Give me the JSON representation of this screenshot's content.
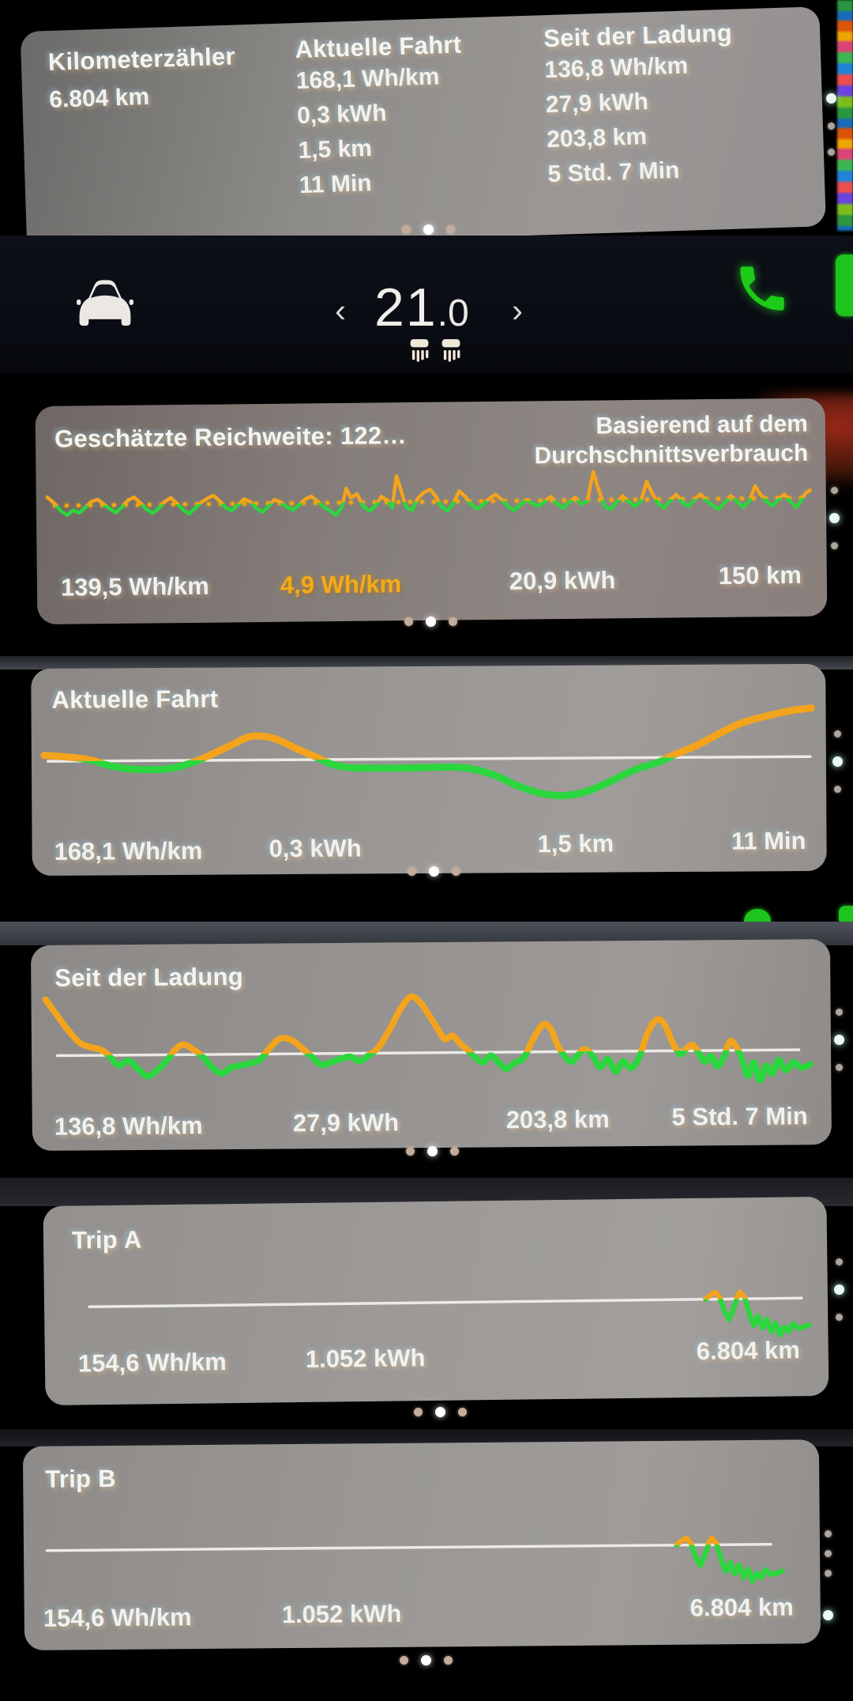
{
  "colors": {
    "orange": "#f3a41c",
    "green": "#2bd63e",
    "white_line": "#eceae6",
    "accent_text_orange": "#f5ab17"
  },
  "icons": {
    "car": "car-front-icon",
    "phone": "phone-icon",
    "seat_left": "seat-heater-left-icon",
    "seat_right": "seat-heater-right-icon",
    "chevron_left": "chevron-left-icon",
    "chevron_right": "chevron-right-icon"
  },
  "odometer_card": {
    "odometer_label": "Kilometerzähler",
    "odometer_value": "6.804 km",
    "current_drive": {
      "title": "Aktuelle Fahrt",
      "rows": [
        "168,1 Wh/km",
        "0,3 kWh",
        "1,5 km",
        "11 Min"
      ]
    },
    "since_charge": {
      "title": "Seit der Ladung",
      "rows": [
        "136,8 Wh/km",
        "27,9 kWh",
        "203,8 km",
        "5 Std. 7 Min"
      ]
    }
  },
  "climate_bar": {
    "chevron_left": "‹",
    "chevron_right": "›",
    "temp_int": "21",
    "temp_dec": ".0"
  },
  "range_card": {
    "title": "Geschätzte Reichweite: 122…",
    "subtitle_line1": "Basierend auf dem",
    "subtitle_line2": "Durchschnittsverbrauch",
    "stats": [
      "139,5 Wh/km",
      "4,9 Wh/km",
      "20,9 kWh",
      "150 km"
    ]
  },
  "current_drive_card": {
    "title": "Aktuelle Fahrt",
    "stats": [
      "168,1 Wh/km",
      "0,3 kWh",
      "1,5 km",
      "11 Min"
    ]
  },
  "since_charge_card": {
    "title": "Seit der Ladung",
    "stats": [
      "136,8 Wh/km",
      "27,9 kWh",
      "203,8 km",
      "5 Std. 7 Min"
    ]
  },
  "trip_a_card": {
    "title": "Trip A",
    "stats": [
      "154,6 Wh/km",
      "1.052 kWh",
      "6.804 km"
    ]
  },
  "trip_b_card": {
    "title": "Trip B",
    "stats": [
      "154,6 Wh/km",
      "1.052 kWh",
      "6.804 km"
    ]
  },
  "chart_data": [
    {
      "id": "range",
      "type": "line",
      "title": "Geschätzte Reichweite Verbrauch",
      "baseline": 70,
      "baseline_style": "none",
      "smooth": false,
      "stroke_width": 4.5,
      "points": [
        [
          0,
          18
        ],
        [
          10,
          4
        ],
        [
          18,
          -12
        ],
        [
          26,
          -20
        ],
        [
          34,
          -10
        ],
        [
          42,
          -16
        ],
        [
          50,
          -4
        ],
        [
          58,
          8
        ],
        [
          66,
          12
        ],
        [
          74,
          2
        ],
        [
          82,
          -8
        ],
        [
          90,
          -16
        ],
        [
          98,
          -4
        ],
        [
          106,
          10
        ],
        [
          114,
          16
        ],
        [
          122,
          4
        ],
        [
          130,
          -10
        ],
        [
          138,
          -18
        ],
        [
          146,
          -8
        ],
        [
          154,
          6
        ],
        [
          162,
          14
        ],
        [
          170,
          2
        ],
        [
          178,
          -12
        ],
        [
          186,
          -20
        ],
        [
          194,
          -8
        ],
        [
          202,
          4
        ],
        [
          210,
          12
        ],
        [
          218,
          18
        ],
        [
          226,
          6
        ],
        [
          234,
          -8
        ],
        [
          242,
          -14
        ],
        [
          250,
          -2
        ],
        [
          258,
          10
        ],
        [
          266,
          4
        ],
        [
          274,
          -10
        ],
        [
          282,
          -18
        ],
        [
          290,
          -6
        ],
        [
          298,
          8
        ],
        [
          306,
          2
        ],
        [
          314,
          -8
        ],
        [
          322,
          -14
        ],
        [
          330,
          -4
        ],
        [
          338,
          8
        ],
        [
          346,
          14
        ],
        [
          354,
          4
        ],
        [
          362,
          -8
        ],
        [
          370,
          -16
        ],
        [
          378,
          -26
        ],
        [
          386,
          -10
        ],
        [
          392,
          30
        ],
        [
          398,
          10
        ],
        [
          406,
          18
        ],
        [
          414,
          -8
        ],
        [
          422,
          -18
        ],
        [
          430,
          -8
        ],
        [
          438,
          12
        ],
        [
          446,
          4
        ],
        [
          452,
          -12
        ],
        [
          458,
          55
        ],
        [
          464,
          24
        ],
        [
          470,
          -10
        ],
        [
          478,
          -18
        ],
        [
          486,
          8
        ],
        [
          494,
          20
        ],
        [
          502,
          26
        ],
        [
          510,
          10
        ],
        [
          516,
          -10
        ],
        [
          524,
          -20
        ],
        [
          532,
          -4
        ],
        [
          540,
          22
        ],
        [
          548,
          10
        ],
        [
          556,
          -8
        ],
        [
          564,
          -16
        ],
        [
          572,
          -6
        ],
        [
          580,
          6
        ],
        [
          588,
          14
        ],
        [
          596,
          2
        ],
        [
          604,
          -12
        ],
        [
          612,
          -20
        ],
        [
          620,
          -8
        ],
        [
          628,
          2
        ],
        [
          636,
          -6
        ],
        [
          644,
          -12
        ],
        [
          652,
          -2
        ],
        [
          660,
          8
        ],
        [
          668,
          -6
        ],
        [
          676,
          -16
        ],
        [
          684,
          -4
        ],
        [
          692,
          6
        ],
        [
          700,
          -8
        ],
        [
          708,
          -2
        ],
        [
          716,
          60
        ],
        [
          722,
          26
        ],
        [
          730,
          -12
        ],
        [
          738,
          -20
        ],
        [
          746,
          -6
        ],
        [
          754,
          8
        ],
        [
          762,
          -4
        ],
        [
          770,
          -14
        ],
        [
          778,
          -4
        ],
        [
          786,
          38
        ],
        [
          792,
          16
        ],
        [
          800,
          -8
        ],
        [
          808,
          -18
        ],
        [
          816,
          -4
        ],
        [
          824,
          10
        ],
        [
          832,
          -6
        ],
        [
          840,
          -16
        ],
        [
          848,
          -2
        ],
        [
          856,
          10
        ],
        [
          864,
          -4
        ],
        [
          872,
          -14
        ],
        [
          880,
          -22
        ],
        [
          888,
          -8
        ],
        [
          896,
          6
        ],
        [
          904,
          -6
        ],
        [
          912,
          -18
        ],
        [
          920,
          -6
        ],
        [
          928,
          26
        ],
        [
          934,
          10
        ],
        [
          942,
          -6
        ],
        [
          950,
          -16
        ],
        [
          958,
          -4
        ],
        [
          966,
          8
        ],
        [
          974,
          -8
        ],
        [
          982,
          -20
        ],
        [
          988,
          -6
        ],
        [
          994,
          10
        ],
        [
          1000,
          16
        ]
      ]
    },
    {
      "id": "current",
      "type": "line",
      "title": "Aktuelle Fahrt Verbrauch",
      "baseline": 87,
      "baseline_style": "solid-white",
      "baseline_span": [
        5,
        998
      ],
      "smooth": true,
      "stroke_width": 9,
      "points": [
        [
          0,
          10
        ],
        [
          30,
          7
        ],
        [
          60,
          2
        ],
        [
          85,
          -8
        ],
        [
          115,
          -14
        ],
        [
          160,
          -14
        ],
        [
          190,
          -5
        ],
        [
          215,
          8
        ],
        [
          245,
          26
        ],
        [
          270,
          40
        ],
        [
          300,
          36
        ],
        [
          330,
          18
        ],
        [
          355,
          4
        ],
        [
          375,
          -8
        ],
        [
          400,
          -14
        ],
        [
          430,
          -15
        ],
        [
          480,
          -15
        ],
        [
          530,
          -14
        ],
        [
          560,
          -18
        ],
        [
          590,
          -30
        ],
        [
          620,
          -48
        ],
        [
          650,
          -60
        ],
        [
          680,
          -63
        ],
        [
          710,
          -55
        ],
        [
          740,
          -38
        ],
        [
          770,
          -20
        ],
        [
          800,
          -8
        ],
        [
          820,
          4
        ],
        [
          850,
          20
        ],
        [
          880,
          40
        ],
        [
          910,
          58
        ],
        [
          945,
          70
        ],
        [
          975,
          78
        ],
        [
          1000,
          82
        ]
      ]
    },
    {
      "id": "since",
      "type": "line",
      "title": "Seit der Ladung Verbrauch",
      "baseline": 118,
      "baseline_style": "solid-white",
      "baseline_span": [
        15,
        985
      ],
      "smooth": true,
      "stroke_width": 8,
      "points": [
        [
          0,
          100
        ],
        [
          15,
          72
        ],
        [
          30,
          44
        ],
        [
          45,
          22
        ],
        [
          60,
          14
        ],
        [
          72,
          10
        ],
        [
          82,
          0
        ],
        [
          95,
          -18
        ],
        [
          108,
          -10
        ],
        [
          120,
          -24
        ],
        [
          132,
          -38
        ],
        [
          145,
          -28
        ],
        [
          158,
          -10
        ],
        [
          170,
          10
        ],
        [
          180,
          18
        ],
        [
          192,
          10
        ],
        [
          205,
          -4
        ],
        [
          218,
          -24
        ],
        [
          230,
          -34
        ],
        [
          242,
          -24
        ],
        [
          255,
          -20
        ],
        [
          268,
          -16
        ],
        [
          280,
          -10
        ],
        [
          295,
          14
        ],
        [
          308,
          28
        ],
        [
          322,
          24
        ],
        [
          335,
          10
        ],
        [
          348,
          -6
        ],
        [
          360,
          -20
        ],
        [
          372,
          -16
        ],
        [
          385,
          -10
        ],
        [
          398,
          -6
        ],
        [
          410,
          -14
        ],
        [
          422,
          -4
        ],
        [
          435,
          10
        ],
        [
          450,
          42
        ],
        [
          465,
          80
        ],
        [
          478,
          100
        ],
        [
          490,
          90
        ],
        [
          502,
          66
        ],
        [
          512,
          44
        ],
        [
          522,
          24
        ],
        [
          532,
          30
        ],
        [
          542,
          16
        ],
        [
          552,
          4
        ],
        [
          562,
          -10
        ],
        [
          572,
          -18
        ],
        [
          582,
          -6
        ],
        [
          592,
          -18
        ],
        [
          602,
          -30
        ],
        [
          612,
          -20
        ],
        [
          625,
          -10
        ],
        [
          638,
          24
        ],
        [
          650,
          48
        ],
        [
          660,
          42
        ],
        [
          670,
          10
        ],
        [
          680,
          -10
        ],
        [
          688,
          -18
        ],
        [
          696,
          -6
        ],
        [
          705,
          4
        ],
        [
          715,
          -8
        ],
        [
          725,
          -28
        ],
        [
          735,
          -14
        ],
        [
          745,
          -36
        ],
        [
          755,
          -18
        ],
        [
          765,
          -30
        ],
        [
          775,
          -14
        ],
        [
          788,
          34
        ],
        [
          800,
          56
        ],
        [
          810,
          46
        ],
        [
          820,
          14
        ],
        [
          830,
          -6
        ],
        [
          838,
          4
        ],
        [
          846,
          10
        ],
        [
          854,
          -4
        ],
        [
          862,
          -20
        ],
        [
          870,
          -10
        ],
        [
          878,
          -28
        ],
        [
          886,
          -14
        ],
        [
          895,
          16
        ],
        [
          903,
          6
        ],
        [
          910,
          -14
        ],
        [
          918,
          -46
        ],
        [
          926,
          -22
        ],
        [
          934,
          -54
        ],
        [
          942,
          -28
        ],
        [
          950,
          -42
        ],
        [
          958,
          -18
        ],
        [
          968,
          -36
        ],
        [
          978,
          -22
        ],
        [
          988,
          -32
        ],
        [
          1000,
          -26
        ]
      ]
    },
    {
      "id": "tripa",
      "type": "line",
      "title": "Trip A Verbrauch",
      "baseline": 100,
      "baseline_style": "solid-white",
      "baseline_span": [
        10,
        990
      ],
      "smooth": false,
      "stroke_width": 6.5,
      "points": [
        [
          858,
          0
        ],
        [
          866,
          10
        ],
        [
          872,
          14
        ],
        [
          878,
          2
        ],
        [
          884,
          -26
        ],
        [
          890,
          -42
        ],
        [
          896,
          -22
        ],
        [
          902,
          6
        ],
        [
          906,
          14
        ],
        [
          912,
          2
        ],
        [
          918,
          -30
        ],
        [
          924,
          -55
        ],
        [
          930,
          -36
        ],
        [
          936,
          -60
        ],
        [
          942,
          -42
        ],
        [
          948,
          -68
        ],
        [
          954,
          -50
        ],
        [
          960,
          -75
        ],
        [
          966,
          -58
        ],
        [
          972,
          -68
        ],
        [
          978,
          -52
        ],
        [
          986,
          -62
        ],
        [
          1000,
          -55
        ]
      ]
    },
    {
      "id": "tripb",
      "type": "line",
      "title": "Trip B Verbrauch",
      "baseline": 100,
      "baseline_style": "solid-white",
      "baseline_span": [
        10,
        985
      ],
      "smooth": false,
      "stroke_width": 6.5,
      "points": [
        [
          858,
          0
        ],
        [
          866,
          10
        ],
        [
          872,
          14
        ],
        [
          878,
          2
        ],
        [
          884,
          -26
        ],
        [
          890,
          -42
        ],
        [
          896,
          -22
        ],
        [
          902,
          6
        ],
        [
          906,
          14
        ],
        [
          912,
          2
        ],
        [
          918,
          -30
        ],
        [
          924,
          -55
        ],
        [
          930,
          -36
        ],
        [
          936,
          -60
        ],
        [
          942,
          -42
        ],
        [
          948,
          -68
        ],
        [
          954,
          -50
        ],
        [
          960,
          -75
        ],
        [
          966,
          -58
        ],
        [
          972,
          -68
        ],
        [
          978,
          -52
        ],
        [
          986,
          -62
        ],
        [
          1000,
          -55
        ]
      ]
    }
  ]
}
